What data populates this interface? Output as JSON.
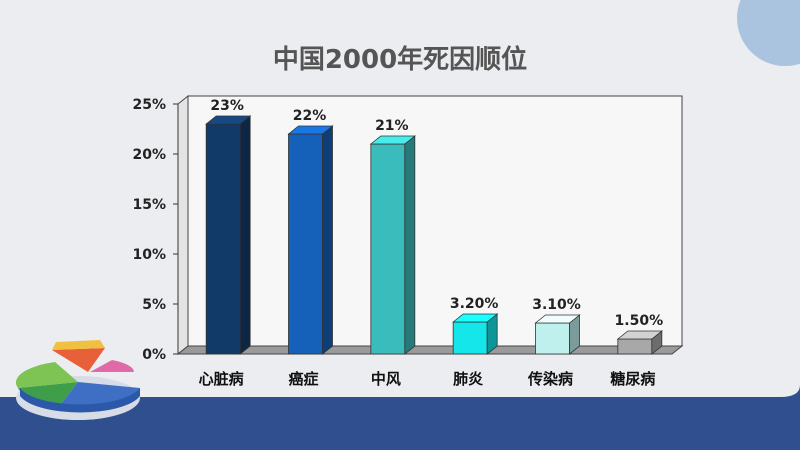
{
  "slide": {
    "title": "中国2000年死因顺位"
  },
  "chart_data": {
    "type": "bar",
    "title": "中国2000年死因顺位",
    "categories": [
      "心脏病",
      "癌症",
      "中风",
      "肺炎",
      "传染病",
      "糖尿病"
    ],
    "values": [
      23,
      22,
      21,
      3.2,
      3.1,
      1.5
    ],
    "data_labels": [
      "23%",
      "22%",
      "21%",
      "3.20%",
      "3.10%",
      "1.50%"
    ],
    "colors": [
      "#123a68",
      "#1560b8",
      "#3bbcbc",
      "#14e6ea",
      "#bff0ee",
      "#a8a8a8"
    ],
    "yticks": [
      "0%",
      "5%",
      "10%",
      "15%",
      "20%",
      "25%"
    ],
    "ylim": [
      0,
      25
    ],
    "xlabel": "",
    "ylabel": "",
    "legend": "none",
    "grid": false
  }
}
